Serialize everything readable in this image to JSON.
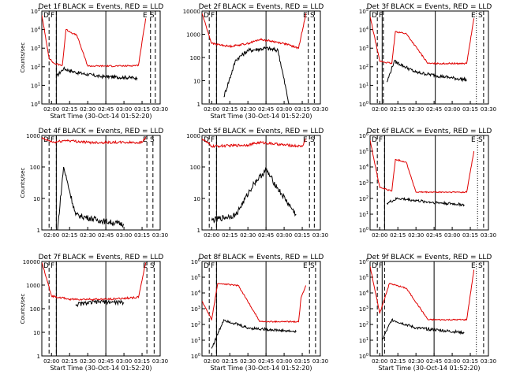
{
  "figure": {
    "layout": "3x3 grid of time-series panels",
    "colors": {
      "events": "#000000",
      "lld": "#e00000",
      "background": "#ffffff"
    }
  },
  "chart_data": [
    {
      "type": "line",
      "title": "Det 1f BLACK = Events, RED = LLD",
      "xlabel": "Start Time (30-Oct-14 01:52:20)",
      "ylabel": "Counts/sec",
      "y_scale": "log",
      "ylim": [
        1,
        100000
      ],
      "y_ticks": [
        "10^0",
        "10^1",
        "10^2",
        "10^3",
        "10^4",
        "10^5"
      ],
      "x_ticks": [
        "02:00",
        "02:15",
        "02:30",
        "02:45",
        "03:00",
        "03:15",
        "03:30"
      ],
      "markers": [
        "D",
        "F",
        "E",
        "S"
      ],
      "series": [
        {
          "name": "Events",
          "color": "#000000",
          "values": [
            {
              "t": "02:04",
              "y": 30
            },
            {
              "t": "02:10",
              "y": 80
            },
            {
              "t": "02:20",
              "y": 50
            },
            {
              "t": "02:40",
              "y": 30
            },
            {
              "t": "03:00",
              "y": 27
            },
            {
              "t": "03:11",
              "y": 25
            }
          ]
        },
        {
          "name": "LLD",
          "color": "#e00000",
          "values": [
            {
              "t": "01:52",
              "y": 60000
            },
            {
              "t": "01:58",
              "y": 300
            },
            {
              "t": "02:02",
              "y": 150
            },
            {
              "t": "02:09",
              "y": 120
            },
            {
              "t": "02:12",
              "y": 10000
            },
            {
              "t": "02:15",
              "y": 8000
            },
            {
              "t": "02:18",
              "y": 6000
            },
            {
              "t": "02:21",
              "y": 5000
            },
            {
              "t": "02:30",
              "y": 110
            },
            {
              "t": "03:00",
              "y": 110
            },
            {
              "t": "03:12",
              "y": 120
            },
            {
              "t": "03:18",
              "y": 40000
            }
          ]
        }
      ]
    },
    {
      "type": "line",
      "title": "Det 2f BLACK = Events, RED = LLD",
      "xlabel": "Start Time (30-Oct-14 01:52:20)",
      "ylabel": "",
      "y_scale": "log",
      "ylim": [
        1,
        10000
      ],
      "y_ticks": [
        "1",
        "10",
        "100",
        "1000",
        "10000"
      ],
      "x_ticks": [
        "02:00",
        "02:15",
        "02:30",
        "02:45",
        "03:00",
        "03:15",
        "03:30"
      ],
      "markers": [
        "D",
        "F",
        "E",
        "S"
      ],
      "series": [
        {
          "name": "Events",
          "color": "#000000",
          "values": [
            {
              "t": "02:10",
              "y": 2
            },
            {
              "t": "02:20",
              "y": 80
            },
            {
              "t": "02:30",
              "y": 200
            },
            {
              "t": "02:45",
              "y": 250
            },
            {
              "t": "02:55",
              "y": 200
            },
            {
              "t": "03:04",
              "y": 1
            }
          ]
        },
        {
          "name": "LLD",
          "color": "#e00000",
          "values": [
            {
              "t": "01:52",
              "y": 8000
            },
            {
              "t": "02:00",
              "y": 400
            },
            {
              "t": "02:15",
              "y": 300
            },
            {
              "t": "02:30",
              "y": 400
            },
            {
              "t": "02:40",
              "y": 600
            },
            {
              "t": "02:50",
              "y": 500
            },
            {
              "t": "03:00",
              "y": 400
            },
            {
              "t": "03:12",
              "y": 250
            },
            {
              "t": "03:18",
              "y": 8000
            }
          ]
        }
      ]
    },
    {
      "type": "line",
      "title": "Det 3f BLACK = Events, RED = LLD",
      "xlabel": "",
      "ylabel": "",
      "y_scale": "log",
      "ylim": [
        1,
        100000
      ],
      "y_ticks": [
        "10^0",
        "10^1",
        "10^2",
        "10^3",
        "10^4",
        "10^5"
      ],
      "x_ticks": [
        "02:00",
        "02:15",
        "02:30",
        "02:45",
        "03:00",
        "03:15",
        "03:30"
      ],
      "markers": [
        "D",
        "F",
        "E",
        "S"
      ],
      "series": [
        {
          "name": "Events",
          "color": "#000000",
          "values": [
            {
              "t": "02:06",
              "y": 15
            },
            {
              "t": "02:12",
              "y": 200
            },
            {
              "t": "02:30",
              "y": 50
            },
            {
              "t": "03:00",
              "y": 25
            },
            {
              "t": "03:12",
              "y": 20
            }
          ]
        },
        {
          "name": "LLD",
          "color": "#e00000",
          "values": [
            {
              "t": "01:52",
              "y": 50000
            },
            {
              "t": "02:00",
              "y": 200
            },
            {
              "t": "02:10",
              "y": 150
            },
            {
              "t": "02:13",
              "y": 8000
            },
            {
              "t": "02:22",
              "y": 6000
            },
            {
              "t": "02:40",
              "y": 150
            },
            {
              "t": "03:12",
              "y": 150
            },
            {
              "t": "03:18",
              "y": 40000
            }
          ]
        }
      ]
    },
    {
      "type": "line",
      "title": "Det 4f BLACK = Events, RED = LLD",
      "xlabel": "",
      "ylabel": "Counts/sec",
      "y_scale": "log",
      "ylim": [
        1,
        1000
      ],
      "y_ticks": [
        "1",
        "10",
        "100",
        "1000"
      ],
      "x_ticks": [
        "02:00",
        "02:15",
        "02:30",
        "02:45",
        "03:00",
        "03:15",
        "03:30"
      ],
      "markers": [
        "D",
        "F",
        "E",
        "S"
      ],
      "series": [
        {
          "name": "Events",
          "color": "#000000",
          "values": [
            {
              "t": "02:05",
              "y": 1
            },
            {
              "t": "02:10",
              "y": 100
            },
            {
              "t": "02:20",
              "y": 3
            },
            {
              "t": "02:40",
              "y": 2
            },
            {
              "t": "03:00",
              "y": 1.5
            }
          ]
        },
        {
          "name": "LLD",
          "color": "#e00000",
          "values": [
            {
              "t": "01:52",
              "y": 800
            },
            {
              "t": "02:02",
              "y": 600
            },
            {
              "t": "02:12",
              "y": 700
            },
            {
              "t": "02:30",
              "y": 600
            },
            {
              "t": "03:00",
              "y": 600
            },
            {
              "t": "03:15",
              "y": 600
            },
            {
              "t": "03:18",
              "y": 900
            }
          ]
        }
      ]
    },
    {
      "type": "line",
      "title": "Det 5f BLACK = Events, RED = LLD",
      "xlabel": "",
      "ylabel": "",
      "y_scale": "log",
      "ylim": [
        1,
        1000
      ],
      "y_ticks": [
        "1",
        "10",
        "100",
        "1000"
      ],
      "x_ticks": [
        "02:00",
        "02:15",
        "02:30",
        "02:45",
        "03:00",
        "03:15",
        "03:30"
      ],
      "markers": [
        "D",
        "F",
        "E",
        "S"
      ],
      "series": [
        {
          "name": "Events",
          "color": "#000000",
          "values": [
            {
              "t": "02:00",
              "y": 2
            },
            {
              "t": "02:20",
              "y": 3
            },
            {
              "t": "02:35",
              "y": 30
            },
            {
              "t": "02:45",
              "y": 80
            },
            {
              "t": "02:55",
              "y": 20
            },
            {
              "t": "03:10",
              "y": 3
            }
          ]
        },
        {
          "name": "LLD",
          "color": "#e00000",
          "values": [
            {
              "t": "01:52",
              "y": 800
            },
            {
              "t": "02:00",
              "y": 450
            },
            {
              "t": "02:30",
              "y": 500
            },
            {
              "t": "02:40",
              "y": 600
            },
            {
              "t": "03:00",
              "y": 500
            },
            {
              "t": "03:15",
              "y": 450
            },
            {
              "t": "03:18",
              "y": 800
            }
          ]
        }
      ]
    },
    {
      "type": "line",
      "title": "Det 6f BLACK = Events, RED = LLD",
      "xlabel": "",
      "ylabel": "",
      "y_scale": "log",
      "ylim": [
        1,
        1000000
      ],
      "y_ticks": [
        "10^0",
        "10^1",
        "10^2",
        "10^3",
        "10^4",
        "10^5",
        "10^6"
      ],
      "x_ticks": [
        "02:00",
        "02:15",
        "02:30",
        "02:45",
        "03:00",
        "03:15",
        "03:30"
      ],
      "markers": [
        "D",
        "F",
        "E",
        "S"
      ],
      "series": [
        {
          "name": "Events",
          "color": "#000000",
          "values": [
            {
              "t": "02:06",
              "y": 50
            },
            {
              "t": "02:15",
              "y": 100
            },
            {
              "t": "02:40",
              "y": 60
            },
            {
              "t": "03:10",
              "y": 40
            }
          ]
        },
        {
          "name": "LLD",
          "color": "#e00000",
          "values": [
            {
              "t": "01:52",
              "y": 500000
            },
            {
              "t": "02:00",
              "y": 500
            },
            {
              "t": "02:10",
              "y": 300
            },
            {
              "t": "02:13",
              "y": 30000
            },
            {
              "t": "02:22",
              "y": 20000
            },
            {
              "t": "02:30",
              "y": 250
            },
            {
              "t": "03:12",
              "y": 250
            },
            {
              "t": "03:18",
              "y": 100000
            }
          ]
        }
      ]
    },
    {
      "type": "line",
      "title": "Det 7f BLACK = Events, RED = LLD",
      "xlabel": "Start Time (30-Oct-14 01:52:20)",
      "ylabel": "Counts/sec",
      "y_scale": "log",
      "ylim": [
        1,
        10000
      ],
      "y_ticks": [
        "1",
        "10",
        "100",
        "1000",
        "10000"
      ],
      "x_ticks": [
        "02:00",
        "02:15",
        "02:30",
        "02:45",
        "03:00",
        "03:15",
        "03:30"
      ],
      "markers": [
        "D",
        "F",
        "E",
        "S"
      ],
      "series": [
        {
          "name": "Events",
          "color": "#000000",
          "values": [
            {
              "t": "02:20",
              "y": 150
            },
            {
              "t": "02:40",
              "y": 200
            },
            {
              "t": "03:00",
              "y": 180
            }
          ]
        },
        {
          "name": "LLD",
          "color": "#e00000",
          "values": [
            {
              "t": "01:52",
              "y": 9000
            },
            {
              "t": "02:00",
              "y": 350
            },
            {
              "t": "02:15",
              "y": 250
            },
            {
              "t": "02:45",
              "y": 250
            },
            {
              "t": "03:12",
              "y": 300
            },
            {
              "t": "03:18",
              "y": 9000
            }
          ]
        }
      ]
    },
    {
      "type": "line",
      "title": "Det 8f BLACK = Events, RED = LLD",
      "xlabel": "Start Time (30-Oct-14 01:52:20)",
      "ylabel": "",
      "y_scale": "log",
      "ylim": [
        1,
        1000000
      ],
      "y_ticks": [
        "10^0",
        "10^1",
        "10^2",
        "10^3",
        "10^4",
        "10^5",
        "10^6"
      ],
      "x_ticks": [
        "02:00",
        "02:15",
        "02:30",
        "02:45",
        "03:00",
        "03:15",
        "03:30"
      ],
      "markers": [
        "D",
        "F",
        "E",
        "S"
      ],
      "series": [
        {
          "name": "Events",
          "color": "#000000",
          "values": [
            {
              "t": "02:00",
              "y": 3
            },
            {
              "t": "02:10",
              "y": 200
            },
            {
              "t": "02:30",
              "y": 60
            },
            {
              "t": "03:00",
              "y": 40
            },
            {
              "t": "03:10",
              "y": 35
            }
          ]
        },
        {
          "name": "LLD",
          "color": "#e00000",
          "values": [
            {
              "t": "01:52",
              "y": 3000
            },
            {
              "t": "02:00",
              "y": 200
            },
            {
              "t": "02:05",
              "y": 40000
            },
            {
              "t": "02:22",
              "y": 30000
            },
            {
              "t": "02:40",
              "y": 150
            },
            {
              "t": "03:12",
              "y": 150
            },
            {
              "t": "03:14",
              "y": 5000
            },
            {
              "t": "03:18",
              "y": 30000
            }
          ]
        }
      ]
    },
    {
      "type": "line",
      "title": "Det 9f BLACK = Events, RED = LLD",
      "xlabel": "Start Time (30-Oct-14 01:52:20)",
      "ylabel": "",
      "y_scale": "log",
      "ylim": [
        1,
        1000000
      ],
      "y_ticks": [
        "10^0",
        "10^1",
        "10^2",
        "10^3",
        "10^4",
        "10^5",
        "10^6"
      ],
      "x_ticks": [
        "02:00",
        "02:15",
        "02:30",
        "02:45",
        "03:00",
        "03:15",
        "03:30"
      ],
      "markers": [
        "D",
        "F",
        "E",
        "S"
      ],
      "series": [
        {
          "name": "Events",
          "color": "#000000",
          "values": [
            {
              "t": "02:02",
              "y": 10
            },
            {
              "t": "02:10",
              "y": 200
            },
            {
              "t": "02:30",
              "y": 60
            },
            {
              "t": "03:10",
              "y": 30
            }
          ]
        },
        {
          "name": "LLD",
          "color": "#e00000",
          "values": [
            {
              "t": "01:52",
              "y": 500000
            },
            {
              "t": "02:00",
              "y": 500
            },
            {
              "t": "02:08",
              "y": 40000
            },
            {
              "t": "02:22",
              "y": 20000
            },
            {
              "t": "02:40",
              "y": 200
            },
            {
              "t": "03:12",
              "y": 200
            },
            {
              "t": "03:18",
              "y": 300000
            }
          ]
        }
      ]
    }
  ]
}
